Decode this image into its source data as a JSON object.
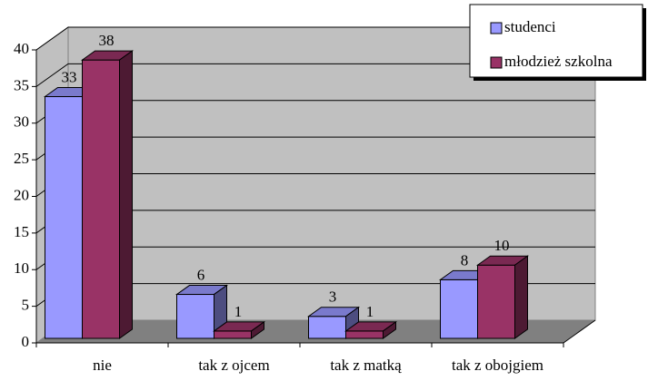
{
  "chart_data": {
    "type": "bar3d",
    "categories": [
      "nie",
      "tak z ojcem",
      "tak z matką",
      "tak z obojgiem"
    ],
    "series": [
      {
        "name": "studenci",
        "color": "#9999ff",
        "values": [
          33,
          6,
          3,
          8
        ]
      },
      {
        "name": "młodzież szkolna",
        "color": "#993366",
        "values": [
          38,
          1,
          1,
          10
        ]
      }
    ],
    "ylim": [
      0,
      40
    ],
    "yticks": [
      0,
      5,
      10,
      15,
      20,
      25,
      30,
      35,
      40
    ],
    "grid": true,
    "legend": "top-right"
  }
}
